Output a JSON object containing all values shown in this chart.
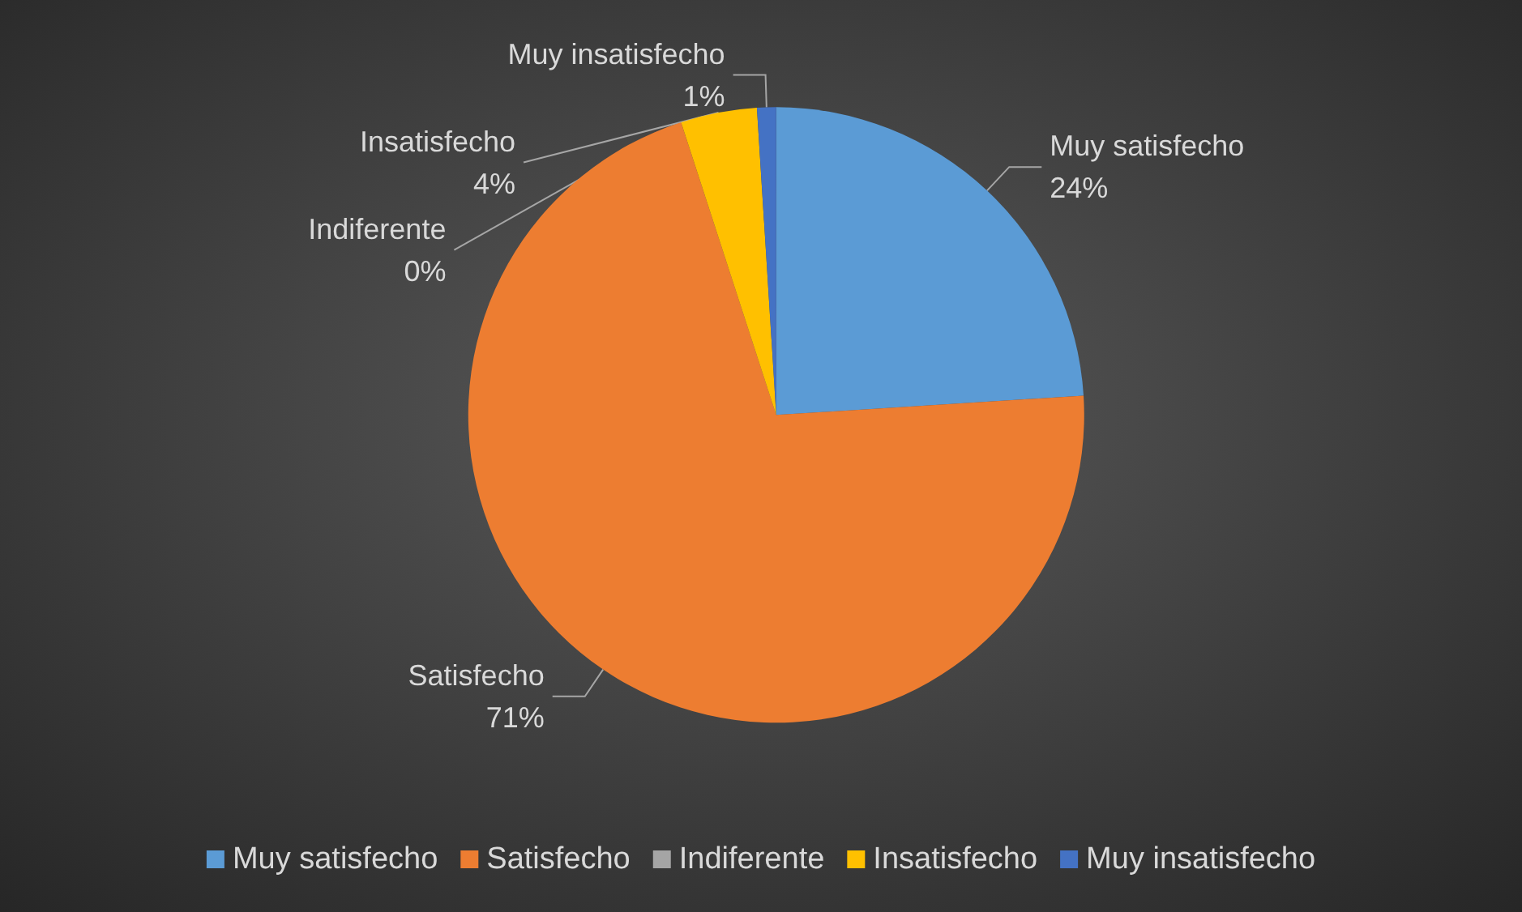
{
  "chart_data": {
    "type": "pie",
    "categories": [
      "Muy satisfecho",
      "Satisfecho",
      "Indiferente",
      "Insatisfecho",
      "Muy insatisfecho"
    ],
    "values": [
      24,
      71,
      0,
      4,
      1
    ],
    "value_labels": [
      "24%",
      "71%",
      "0%",
      "4%",
      "1%"
    ],
    "colors": [
      "#5b9bd5",
      "#ed7d31",
      "#a5a5a5",
      "#ffc000",
      "#4472c4"
    ],
    "legend": "bottom"
  }
}
